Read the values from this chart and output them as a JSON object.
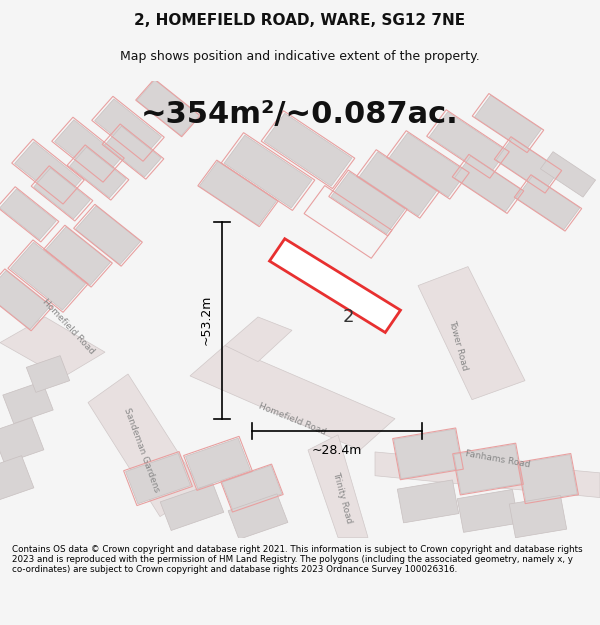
{
  "title": "2, HOMEFIELD ROAD, WARE, SG12 7NE",
  "subtitle": "Map shows position and indicative extent of the property.",
  "area_text": "~354m²/~0.087ac.",
  "dim_width": "~28.4m",
  "dim_height": "~53.2m",
  "property_label": "2",
  "footer": "Contains OS data © Crown copyright and database right 2021. This information is subject to Crown copyright and database rights 2023 and is reproduced with the permission of HM Land Registry. The polygons (including the associated geometry, namely x, y co-ordinates) are subject to Crown copyright and database rights 2023 Ordnance Survey 100026316.",
  "bg_color": "#f5f5f5",
  "map_bg": "#f0eeee",
  "road_color": "#e8e0e0",
  "building_fill": "#d8d4d4",
  "building_stroke": "#c8c0c0",
  "highlight_stroke": "#e83030",
  "highlight_fill": "#ffffff",
  "road_label_color": "#888888",
  "dim_color": "#000000",
  "text_color": "#111111",
  "footer_color": "#000000"
}
